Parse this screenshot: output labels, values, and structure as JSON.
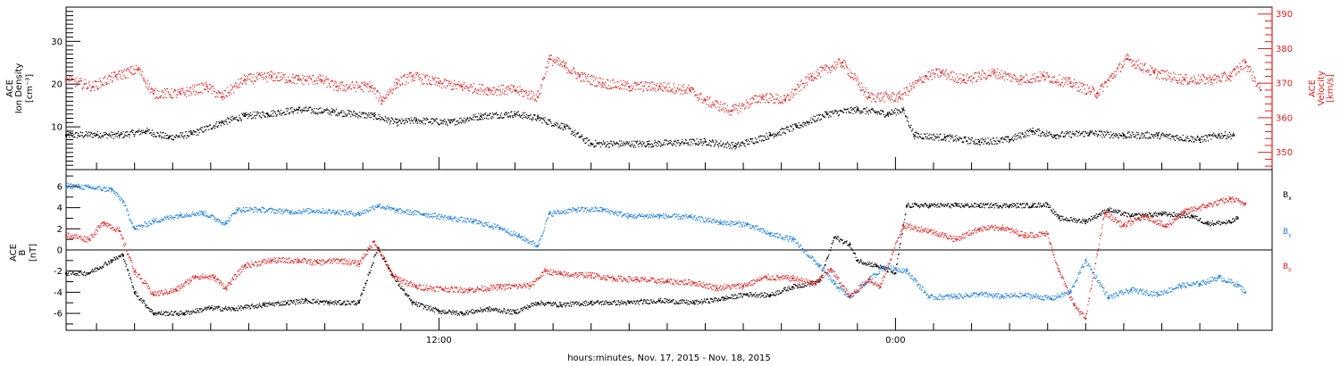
{
  "colors": {
    "black": "#000000",
    "blue": "#1f7fe0",
    "red": "#e0201e"
  },
  "xlabel": "hours:minutes, Nov. 17, 2015 - Nov. 18, 2015",
  "chart_data": [
    {
      "type": "scatter",
      "panel": "plasma",
      "ylabel_left": [
        "ACE",
        "Ion Density",
        "[cm⁻³]"
      ],
      "ylabel_right": [
        "ACE",
        "Velocity",
        "[km/s]"
      ],
      "x_unit": "hours since 00:00 Nov. 17, 2015",
      "xlim": [
        2.2,
        33.9
      ],
      "x_ticks": [
        {
          "x": 12,
          "label": "12:00"
        },
        {
          "x": 24,
          "label": "0:00"
        }
      ],
      "ylim_left": [
        0,
        38
      ],
      "yticks_left": [
        10,
        20,
        30
      ],
      "ylim_right": [
        345,
        392
      ],
      "yticks_right": [
        350,
        360,
        370,
        380,
        390
      ],
      "series": [
        {
          "axis": "left",
          "color": "black",
          "points": [
            [
              2.2,
              8
            ],
            [
              3.0,
              8.2
            ],
            [
              3.6,
              8
            ],
            [
              4.3,
              9
            ],
            [
              4.9,
              7.5
            ],
            [
              5.5,
              8.3
            ],
            [
              6.3,
              11
            ],
            [
              6.9,
              12.5
            ],
            [
              7.5,
              13
            ],
            [
              8.3,
              14
            ],
            [
              9.2,
              13.5
            ],
            [
              10.3,
              12.5
            ],
            [
              10.9,
              11
            ],
            [
              11.4,
              11.5
            ],
            [
              12.3,
              11
            ],
            [
              13.1,
              12.5
            ],
            [
              14.0,
              13
            ],
            [
              14.6,
              12
            ],
            [
              15.3,
              10
            ],
            [
              16.0,
              6
            ],
            [
              17.5,
              6
            ],
            [
              19.0,
              6.5
            ],
            [
              19.8,
              5.5
            ],
            [
              20.7,
              8
            ],
            [
              21.4,
              10
            ],
            [
              22.2,
              13
            ],
            [
              23.0,
              14
            ],
            [
              23.8,
              13
            ],
            [
              24.2,
              14
            ],
            [
              24.5,
              8
            ],
            [
              25.3,
              7.5
            ],
            [
              26.2,
              6.5
            ],
            [
              27.0,
              7
            ],
            [
              27.6,
              9
            ],
            [
              28.2,
              8
            ],
            [
              29.1,
              8.5
            ],
            [
              30.0,
              8
            ],
            [
              30.9,
              8
            ],
            [
              32.0,
              7
            ],
            [
              32.5,
              8
            ],
            [
              32.9,
              8
            ]
          ]
        },
        {
          "axis": "right",
          "color": "red",
          "points": [
            [
              2.2,
              371
            ],
            [
              2.9,
              369
            ],
            [
              3.5,
              372
            ],
            [
              4.1,
              374
            ],
            [
              4.5,
              367
            ],
            [
              5.2,
              367
            ],
            [
              5.9,
              369
            ],
            [
              6.3,
              366
            ],
            [
              6.9,
              371
            ],
            [
              7.6,
              372
            ],
            [
              8.3,
              371
            ],
            [
              8.9,
              371
            ],
            [
              9.3,
              369
            ],
            [
              10.2,
              369
            ],
            [
              10.5,
              365
            ],
            [
              10.9,
              370
            ],
            [
              11.3,
              372
            ],
            [
              12.0,
              370
            ],
            [
              12.6,
              369
            ],
            [
              13.3,
              368
            ],
            [
              14.0,
              368
            ],
            [
              14.6,
              366
            ],
            [
              14.9,
              377
            ],
            [
              15.3,
              375
            ],
            [
              15.7,
              372
            ],
            [
              16.3,
              370
            ],
            [
              17.0,
              369
            ],
            [
              17.8,
              369
            ],
            [
              18.6,
              368
            ],
            [
              19.0,
              365
            ],
            [
              19.7,
              362
            ],
            [
              20.5,
              366
            ],
            [
              21.1,
              365
            ],
            [
              21.8,
              372
            ],
            [
              22.6,
              376
            ],
            [
              23.3,
              366
            ],
            [
              24.1,
              366
            ],
            [
              24.8,
              372
            ],
            [
              25.2,
              373
            ],
            [
              25.8,
              371
            ],
            [
              26.6,
              373
            ],
            [
              27.3,
              371
            ],
            [
              27.9,
              372
            ],
            [
              28.6,
              370
            ],
            [
              29.3,
              367
            ],
            [
              30.1,
              377
            ],
            [
              30.8,
              373
            ],
            [
              31.6,
              371
            ],
            [
              32.3,
              371
            ],
            [
              32.8,
              372
            ],
            [
              33.2,
              376
            ],
            [
              33.6,
              368
            ]
          ]
        }
      ]
    },
    {
      "type": "scatter",
      "panel": "magnetic-field",
      "ylabel_left": [
        "ACE",
        "B",
        "[nT]"
      ],
      "x_unit": "hours since 00:00 Nov. 17, 2015",
      "xlim": [
        2.2,
        33.9
      ],
      "x_ticks": [
        {
          "x": 12,
          "label": "12:00"
        },
        {
          "x": 24,
          "label": "0:00"
        }
      ],
      "ylim": [
        -7.6,
        7.6
      ],
      "yticks": [
        -6,
        -4,
        -2,
        0,
        2,
        4,
        6
      ],
      "zero_line": true,
      "legend": [
        {
          "label": "B",
          "sub": "x",
          "color": "black"
        },
        {
          "label": "B",
          "sub": "y",
          "color": "blue"
        },
        {
          "label": "B",
          "sub": "z",
          "color": "red"
        }
      ],
      "series": [
        {
          "name_sub": "x",
          "color": "black",
          "points": [
            [
              2.2,
              -2.2
            ],
            [
              2.8,
              -2.2
            ],
            [
              3.4,
              -1
            ],
            [
              3.7,
              -0.5
            ],
            [
              4.0,
              -4
            ],
            [
              4.5,
              -6
            ],
            [
              5.3,
              -6
            ],
            [
              6.0,
              -5.5
            ],
            [
              6.6,
              -5.6
            ],
            [
              7.4,
              -5.2
            ],
            [
              8.0,
              -5
            ],
            [
              8.5,
              -4.8
            ],
            [
              9.1,
              -5
            ],
            [
              9.9,
              -5
            ],
            [
              10.4,
              0.2
            ],
            [
              10.8,
              -2.5
            ],
            [
              11.3,
              -5
            ],
            [
              12.0,
              -5.8
            ],
            [
              12.6,
              -6
            ],
            [
              13.3,
              -5.6
            ],
            [
              14.0,
              -5.9
            ],
            [
              14.6,
              -5
            ],
            [
              15.2,
              -5.2
            ],
            [
              16.0,
              -5
            ],
            [
              17.0,
              -5
            ],
            [
              17.8,
              -4.8
            ],
            [
              18.7,
              -5
            ],
            [
              19.5,
              -4.6
            ],
            [
              20.1,
              -4.2
            ],
            [
              20.7,
              -4.3
            ],
            [
              21.3,
              -3.5
            ],
            [
              22.0,
              -3
            ],
            [
              22.4,
              1.2
            ],
            [
              22.8,
              0.5
            ],
            [
              23.0,
              -1
            ],
            [
              23.5,
              -1.5
            ],
            [
              24.0,
              -2.2
            ],
            [
              24.3,
              4.2
            ],
            [
              24.9,
              4.2
            ],
            [
              25.6,
              4.2
            ],
            [
              26.2,
              4.2
            ],
            [
              27.0,
              4.2
            ],
            [
              27.6,
              4.2
            ],
            [
              28.0,
              4.3
            ],
            [
              28.3,
              3
            ],
            [
              29.0,
              2.7
            ],
            [
              29.6,
              3.8
            ],
            [
              30.2,
              3.2
            ],
            [
              31.0,
              3.4
            ],
            [
              31.8,
              3.2
            ],
            [
              32.2,
              2.5
            ],
            [
              32.8,
              2.6
            ],
            [
              33.0,
              3
            ]
          ]
        },
        {
          "name_sub": "y",
          "color": "blue",
          "points": [
            [
              2.2,
              6.1
            ],
            [
              2.8,
              5.9
            ],
            [
              3.4,
              5.7
            ],
            [
              3.7,
              4.6
            ],
            [
              4.0,
              2
            ],
            [
              4.5,
              2.7
            ],
            [
              5.2,
              3.3
            ],
            [
              5.8,
              3.5
            ],
            [
              6.4,
              2.5
            ],
            [
              6.7,
              3.8
            ],
            [
              7.3,
              3.8
            ],
            [
              8.1,
              3.6
            ],
            [
              8.7,
              3.7
            ],
            [
              9.3,
              3.6
            ],
            [
              9.9,
              3.4
            ],
            [
              10.4,
              4.2
            ],
            [
              10.9,
              3.7
            ],
            [
              11.6,
              3.4
            ],
            [
              12.3,
              3
            ],
            [
              12.9,
              2.7
            ],
            [
              13.6,
              2.1
            ],
            [
              14.1,
              1.3
            ],
            [
              14.6,
              0.4
            ],
            [
              14.9,
              3.4
            ],
            [
              15.6,
              3.8
            ],
            [
              16.3,
              3.8
            ],
            [
              17.0,
              3.2
            ],
            [
              17.8,
              3.2
            ],
            [
              18.6,
              3.1
            ],
            [
              19.4,
              2.6
            ],
            [
              20.1,
              2.4
            ],
            [
              20.7,
              1.5
            ],
            [
              21.3,
              1
            ],
            [
              22.0,
              -1.5
            ],
            [
              22.4,
              -3.2
            ],
            [
              22.8,
              -4.5
            ],
            [
              23.2,
              -3.2
            ],
            [
              23.7,
              -1.6
            ],
            [
              24.3,
              -2
            ],
            [
              24.9,
              -4.5
            ],
            [
              25.6,
              -4.4
            ],
            [
              26.2,
              -4.2
            ],
            [
              26.8,
              -4.4
            ],
            [
              27.4,
              -4.3
            ],
            [
              28.1,
              -4.6
            ],
            [
              28.6,
              -4
            ],
            [
              29.0,
              -1
            ],
            [
              29.6,
              -4.5
            ],
            [
              30.2,
              -3.8
            ],
            [
              30.9,
              -4.2
            ],
            [
              31.5,
              -3.4
            ],
            [
              32.0,
              -3.2
            ],
            [
              32.5,
              -2.6
            ],
            [
              33.0,
              -3.3
            ],
            [
              33.2,
              -4
            ]
          ]
        },
        {
          "name_sub": "z",
          "color": "red",
          "points": [
            [
              2.2,
              1.4
            ],
            [
              2.8,
              1
            ],
            [
              3.2,
              2.6
            ],
            [
              3.6,
              1.8
            ],
            [
              4.0,
              -2
            ],
            [
              4.5,
              -4.2
            ],
            [
              5.1,
              -3.8
            ],
            [
              5.6,
              -2.5
            ],
            [
              6.1,
              -2.6
            ],
            [
              6.4,
              -3.6
            ],
            [
              6.9,
              -1.5
            ],
            [
              7.6,
              -1
            ],
            [
              8.3,
              -1
            ],
            [
              8.8,
              -1.2
            ],
            [
              9.4,
              -1
            ],
            [
              9.9,
              -1.3
            ],
            [
              10.3,
              0.8
            ],
            [
              10.8,
              -2.5
            ],
            [
              11.4,
              -3.5
            ],
            [
              12.1,
              -3.7
            ],
            [
              12.8,
              -3.8
            ],
            [
              13.6,
              -3.5
            ],
            [
              14.4,
              -3.4
            ],
            [
              14.8,
              -2
            ],
            [
              15.2,
              -2.3
            ],
            [
              16.0,
              -2.4
            ],
            [
              16.6,
              -2.7
            ],
            [
              17.2,
              -2.8
            ],
            [
              18.0,
              -3
            ],
            [
              18.7,
              -3.1
            ],
            [
              19.3,
              -3.6
            ],
            [
              20.0,
              -3.4
            ],
            [
              20.6,
              -2.6
            ],
            [
              21.3,
              -2.7
            ],
            [
              21.9,
              -3.2
            ],
            [
              22.3,
              -1.8
            ],
            [
              22.8,
              -4.4
            ],
            [
              23.3,
              -2.8
            ],
            [
              23.6,
              -3.5
            ],
            [
              24.2,
              2.3
            ],
            [
              24.9,
              1.8
            ],
            [
              25.6,
              1
            ],
            [
              26.2,
              2
            ],
            [
              26.8,
              2.1
            ],
            [
              27.4,
              1.4
            ],
            [
              28.0,
              1.5
            ],
            [
              28.3,
              -2
            ],
            [
              28.7,
              -5.2
            ],
            [
              29.0,
              -6.5
            ],
            [
              29.5,
              3.5
            ],
            [
              30.0,
              2.3
            ],
            [
              30.6,
              3.2
            ],
            [
              31.1,
              2.2
            ],
            [
              31.6,
              3.6
            ],
            [
              32.2,
              4.2
            ],
            [
              32.8,
              4.8
            ],
            [
              33.2,
              4.4
            ]
          ]
        }
      ]
    }
  ]
}
